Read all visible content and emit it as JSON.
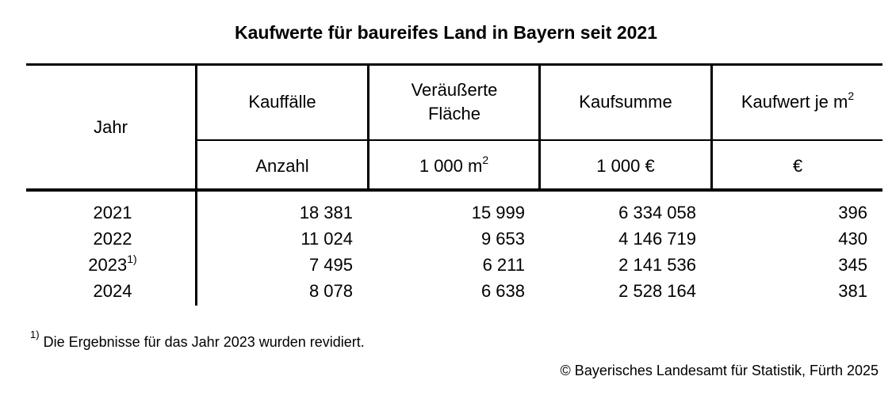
{
  "title": "Kaufwerte für baureifes Land in Bayern seit 2021",
  "table": {
    "header_year": "Jahr",
    "columns": [
      {
        "name": "Kauffälle",
        "unit": "Anzahl"
      },
      {
        "name": "Veräußerte Fläche",
        "unit": "1 000 m",
        "unit_sup": "2"
      },
      {
        "name": "Kaufsumme",
        "unit": "1 000 €"
      },
      {
        "name": "Kaufwert je m",
        "name_sup": "2",
        "unit": "€"
      }
    ],
    "rows": [
      {
        "year": "2021",
        "year_note": "",
        "values": [
          "18 381",
          "15 999",
          "6 334 058",
          "396"
        ]
      },
      {
        "year": "2022",
        "year_note": "",
        "values": [
          "11 024",
          "9 653",
          "4 146 719",
          "430"
        ]
      },
      {
        "year": "2023",
        "year_note": "1)",
        "values": [
          "7 495",
          "6 211",
          "2 141 536",
          "345"
        ]
      },
      {
        "year": "2024",
        "year_note": "",
        "values": [
          "8 078",
          "6 638",
          "2 528 164",
          "381"
        ]
      }
    ]
  },
  "footnote": {
    "marker": "1)",
    "text": "Die Ergebnisse für das Jahr 2023 wurden revidiert."
  },
  "copyright": "© Bayerisches Landesamt für Statistik, Fürth 2025"
}
